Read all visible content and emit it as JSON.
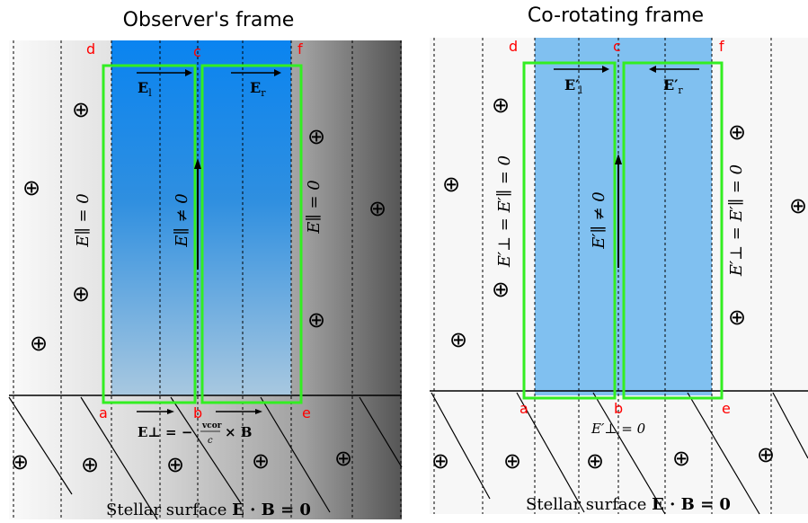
{
  "panels": {
    "left": {
      "title": "Observer's frame",
      "points": {
        "a": "a",
        "b": "b",
        "c": "c",
        "d": "d",
        "e": "e",
        "f": "f"
      },
      "field_left": "E",
      "field_left_sub": "l",
      "field_right": "E",
      "field_right_sub": "r",
      "epar_zero_left": "E∥ = 0",
      "epar_nonzero": "E∥ ≠ 0",
      "epar_zero_right": "E∥ = 0",
      "eperp_formula_lhs": "E⊥ = −",
      "eperp_formula_frac_num": "vcor",
      "eperp_formula_frac_den": "c",
      "eperp_formula_rhs": "× B",
      "surface_text": "Stellar surface ",
      "surface_math": "E · B = 0",
      "plus_symbol": "⊕"
    },
    "right": {
      "title": "Co-rotating frame",
      "points": {
        "a": "a",
        "b": "b",
        "c": "c",
        "d": "d",
        "e": "e",
        "f": "f"
      },
      "field_left": "E′",
      "field_left_sub": "l",
      "field_right": "E′",
      "field_right_sub": "r",
      "epar_left": "E′⊥ = E′∥ = 0",
      "epar_nonzero": "E′∥ ≠ 0",
      "epar_right": "E′⊥ = E′∥ = 0",
      "eperp_zero": "E′⊥ = 0",
      "surface_text": "Stellar surface ",
      "surface_math": "E · B = 0",
      "plus_symbol": "⊕"
    }
  },
  "colors": {
    "gap_blue": "#1a8cff",
    "gap_light_blue": "#80c0f0",
    "box_green": "#33ee22",
    "label_red": "#ff0000"
  }
}
